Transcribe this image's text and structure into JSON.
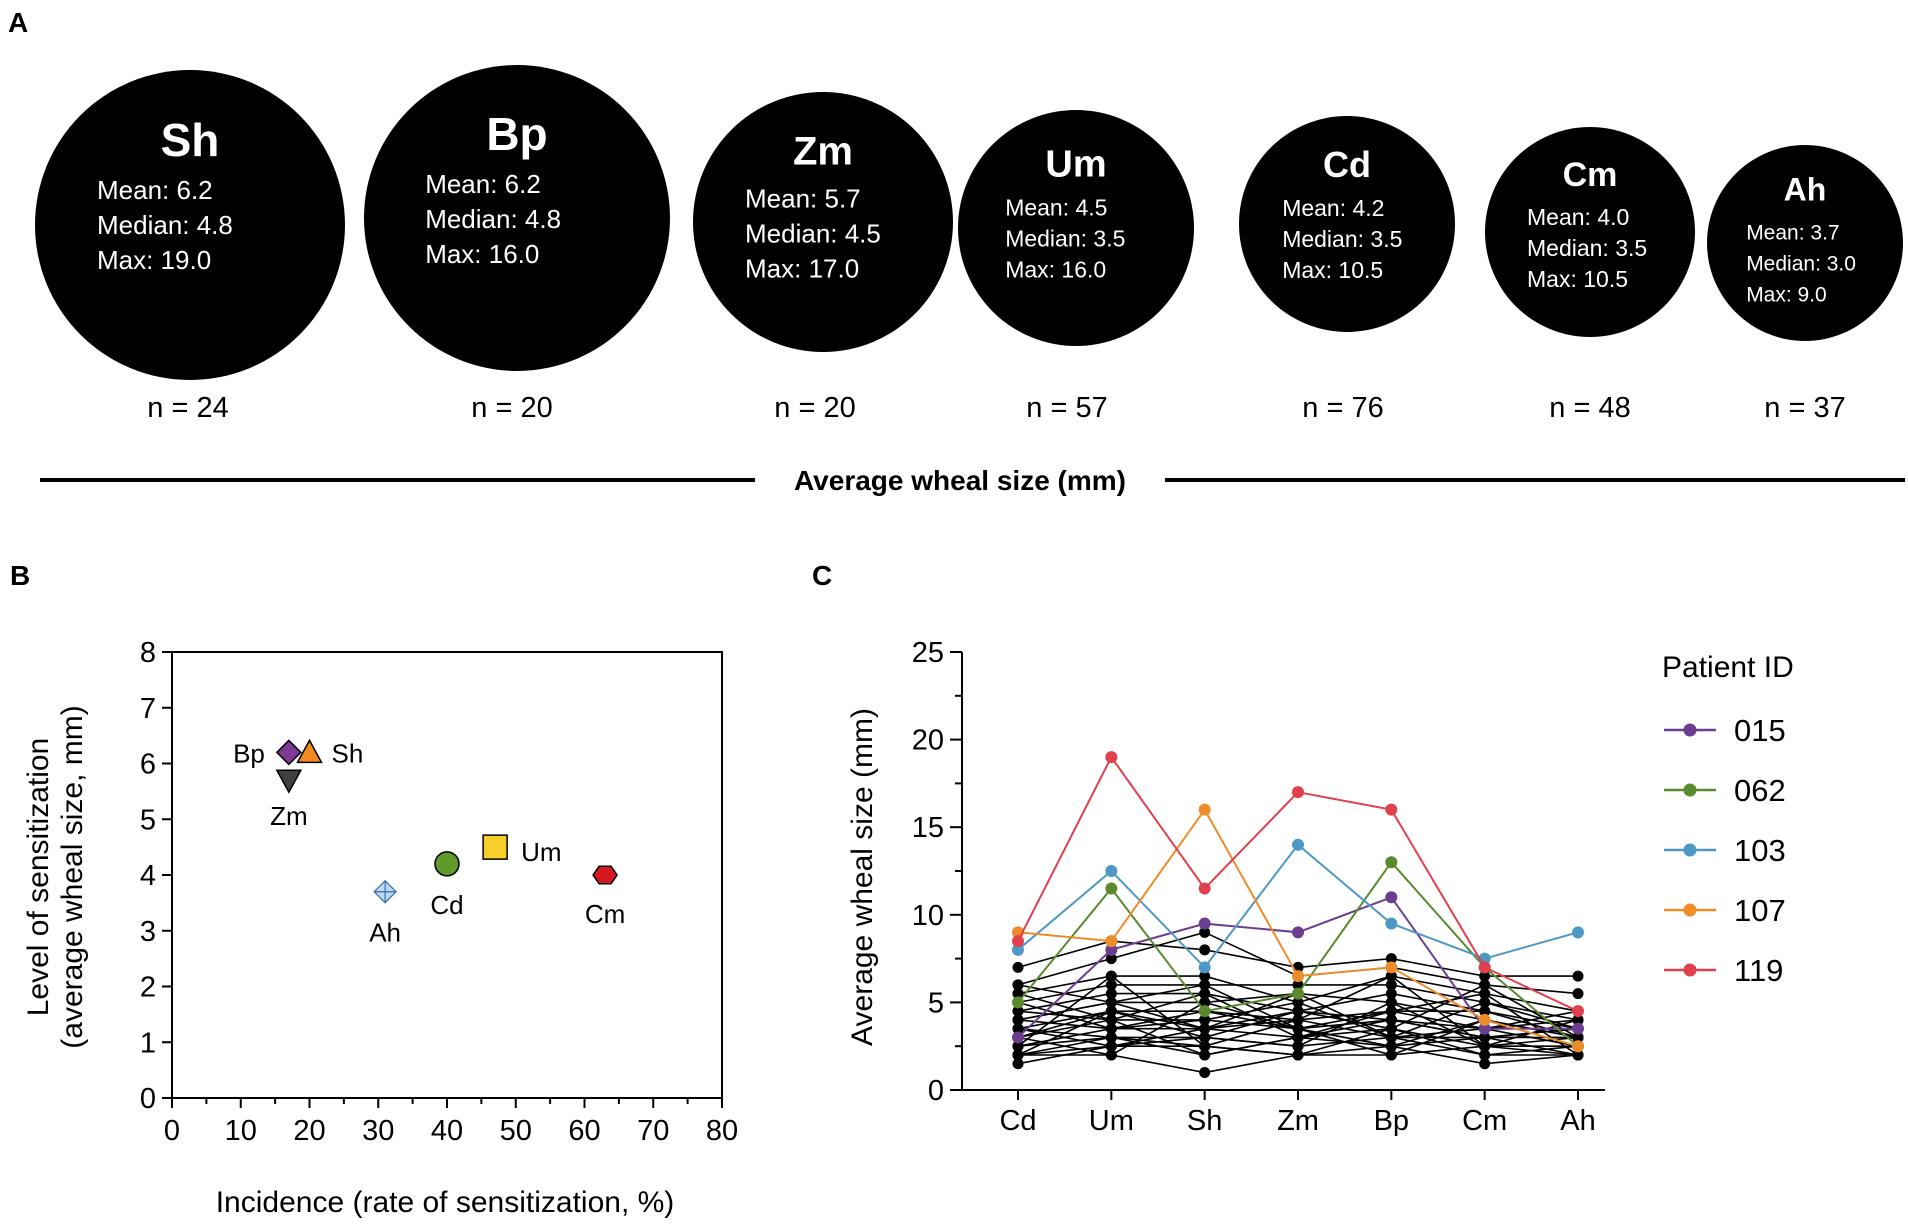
{
  "panels": {
    "a": "A",
    "b": "B",
    "c": "C"
  },
  "panel_a": {
    "circles": [
      {
        "name": "Sh",
        "mean": "Mean: 6.2",
        "median": "Median: 4.8",
        "max": "Max: 19.0",
        "n": "n = 24"
      },
      {
        "name": "Bp",
        "mean": "Mean: 6.2",
        "median": "Median: 4.8",
        "max": "Max: 16.0",
        "n": "n = 20"
      },
      {
        "name": "Zm",
        "mean": "Mean: 5.7",
        "median": "Median: 4.5",
        "max": "Max: 17.0",
        "n": "n = 20"
      },
      {
        "name": "Um",
        "mean": "Mean: 4.5",
        "median": "Median: 3.5",
        "max": "Max: 16.0",
        "n": "n = 57"
      },
      {
        "name": "Cd",
        "mean": "Mean: 4.2",
        "median": "Median: 3.5",
        "max": "Max: 10.5",
        "n": "n = 76"
      },
      {
        "name": "Cm",
        "mean": "Mean: 4.0",
        "median": "Median: 3.5",
        "max": "Max: 10.5",
        "n": "n = 48"
      },
      {
        "name": "Ah",
        "mean": "Mean: 3.7",
        "median": "Median: 3.0",
        "max": "Max: 9.0",
        "n": "n = 37"
      }
    ],
    "axis_label": "Average wheal size (mm)"
  },
  "chart_data": [
    {
      "type": "scatter",
      "panel": "B",
      "xlabel": "Incidence (rate of sensitization, %)",
      "ylabel_line1": "Level of sensitization",
      "ylabel_line2": "(average wheal size, mm)",
      "xlim": [
        0,
        80
      ],
      "ylim": [
        0,
        8
      ],
      "xticks": [
        0,
        10,
        20,
        30,
        40,
        50,
        60,
        70,
        80
      ],
      "yticks": [
        0,
        1,
        2,
        3,
        4,
        5,
        6,
        7,
        8
      ],
      "points": [
        {
          "label": "Bp",
          "x": 17,
          "y": 6.2,
          "marker": "diamond",
          "color": "#7b3a93"
        },
        {
          "label": "Sh",
          "x": 20,
          "y": 6.2,
          "marker": "triangle-up",
          "color": "#f28a1e"
        },
        {
          "label": "Zm",
          "x": 17,
          "y": 5.7,
          "marker": "triangle-down",
          "color": "#404040"
        },
        {
          "label": "Um",
          "x": 47,
          "y": 4.5,
          "marker": "square",
          "color": "#f6cf2a"
        },
        {
          "label": "Cd",
          "x": 40,
          "y": 4.2,
          "marker": "circle",
          "color": "#5f9a2a"
        },
        {
          "label": "Cm",
          "x": 63,
          "y": 4.0,
          "marker": "hexagon",
          "color": "#d7171f"
        },
        {
          "label": "Ah",
          "x": 31,
          "y": 3.7,
          "marker": "diamond-plus",
          "color": "#bcd9f2"
        }
      ]
    },
    {
      "type": "line",
      "panel": "C",
      "ylabel": "Average wheal size (mm)",
      "categories": [
        "Cd",
        "Um",
        "Sh",
        "Zm",
        "Bp",
        "Cm",
        "Ah"
      ],
      "ylim": [
        0,
        25
      ],
      "yticks": [
        0,
        5,
        10,
        15,
        20,
        25
      ],
      "legend_title": "Patient ID",
      "series": [
        {
          "name": "015",
          "color": "#6a3d8f",
          "values": [
            3.0,
            8.0,
            9.5,
            9.0,
            11.0,
            3.5,
            3.5
          ]
        },
        {
          "name": "062",
          "color": "#5a8a2e",
          "values": [
            5.0,
            11.5,
            4.5,
            5.5,
            13.0,
            7.0,
            2.5
          ]
        },
        {
          "name": "103",
          "color": "#4d98c4",
          "values": [
            8.0,
            12.5,
            7.0,
            14.0,
            9.5,
            7.5,
            9.0
          ]
        },
        {
          "name": "107",
          "color": "#ee8c2a",
          "values": [
            9.0,
            8.5,
            16.0,
            6.5,
            7.0,
            4.0,
            2.5
          ]
        },
        {
          "name": "119",
          "color": "#e0404e",
          "values": [
            8.5,
            19.0,
            11.5,
            17.0,
            16.0,
            7.0,
            4.5
          ]
        }
      ],
      "background_series_color": "#000000",
      "background_series": [
        [
          7.0,
          8.5,
          8.0,
          7.0,
          7.5,
          6.5,
          6.5
        ],
        [
          6.0,
          7.5,
          9.0,
          6.5,
          7.0,
          6.0,
          5.5
        ],
        [
          5.5,
          6.5,
          6.5,
          5.0,
          6.5,
          5.5,
          4.5
        ],
        [
          5.0,
          6.0,
          6.0,
          6.0,
          6.0,
          5.0,
          4.0
        ],
        [
          4.5,
          5.5,
          5.5,
          4.5,
          5.5,
          4.5,
          3.5
        ],
        [
          4.0,
          5.0,
          5.0,
          5.5,
          5.0,
          4.0,
          3.0
        ],
        [
          3.5,
          4.5,
          4.5,
          4.0,
          4.5,
          3.5,
          4.0
        ],
        [
          3.0,
          4.0,
          4.0,
          3.5,
          4.0,
          3.0,
          3.5
        ],
        [
          2.5,
          3.5,
          3.5,
          3.0,
          3.5,
          2.5,
          3.0
        ],
        [
          2.0,
          3.0,
          3.0,
          2.5,
          3.0,
          2.0,
          2.5
        ],
        [
          1.5,
          2.5,
          2.5,
          2.0,
          2.5,
          1.5,
          2.0
        ],
        [
          2.0,
          2.0,
          1.0,
          2.0,
          2.0,
          2.5,
          2.0
        ],
        [
          3.0,
          4.5,
          3.5,
          4.0,
          3.0,
          3.5,
          2.5
        ],
        [
          4.0,
          3.5,
          4.5,
          3.5,
          4.5,
          4.5,
          3.0
        ],
        [
          2.5,
          3.0,
          2.0,
          3.0,
          2.5,
          3.0,
          3.5
        ],
        [
          3.5,
          2.5,
          3.0,
          4.5,
          3.5,
          2.0,
          2.0
        ],
        [
          4.5,
          4.0,
          5.5,
          3.0,
          4.0,
          3.5,
          4.5
        ],
        [
          5.0,
          3.5,
          4.0,
          5.0,
          3.0,
          5.0,
          3.5
        ],
        [
          2.0,
          4.5,
          3.0,
          2.5,
          5.0,
          2.5,
          2.5
        ],
        [
          3.0,
          2.0,
          5.0,
          3.5,
          2.0,
          4.0,
          3.0
        ],
        [
          6.0,
          5.0,
          3.5,
          4.5,
          4.0,
          3.0,
          2.0
        ],
        [
          2.5,
          6.5,
          2.5,
          2.0,
          3.5,
          6.0,
          3.0
        ],
        [
          3.5,
          3.0,
          2.5,
          4.0,
          6.5,
          2.5,
          4.0
        ],
        [
          4.0,
          5.0,
          6.0,
          3.5,
          2.5,
          4.0,
          2.5
        ],
        [
          2.0,
          2.5,
          3.5,
          5.5,
          3.0,
          3.0,
          3.0
        ],
        [
          5.5,
          4.0,
          2.0,
          3.0,
          4.5,
          5.5,
          2.0
        ]
      ]
    }
  ]
}
